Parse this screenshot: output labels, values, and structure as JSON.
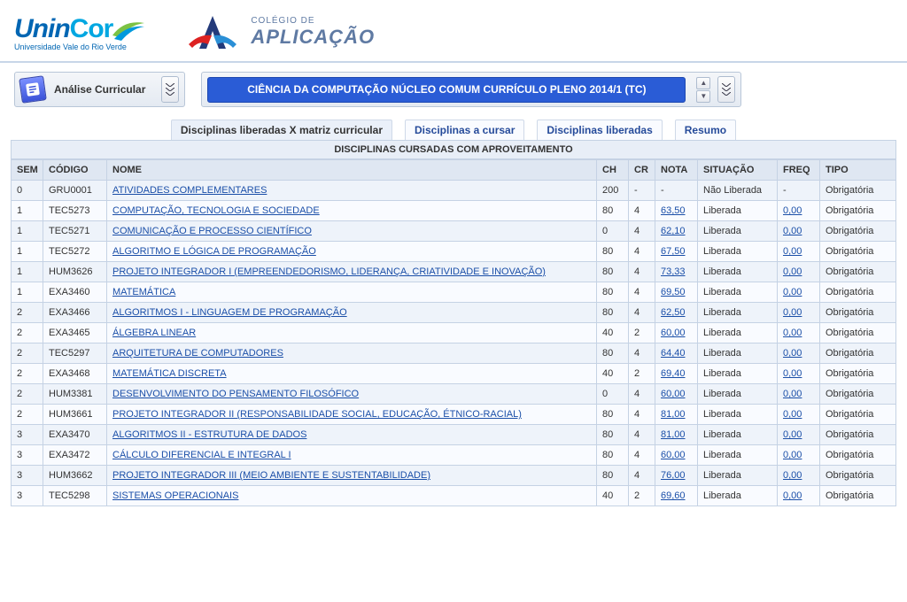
{
  "colors": {
    "header_border": "#c8d6e8",
    "toolbar_bg_top": "#f4f6f9",
    "toolbar_bg_bot": "#e4eaf2",
    "toolbar_border": "#b8c6d8",
    "course_bg": "#2a5cd6",
    "th_bg": "#dfe7f2",
    "row_odd": "#eef3fa",
    "row_even": "#f9fbff",
    "cell_border": "#c5d2e4",
    "link": "#1b4fa8"
  },
  "logos": {
    "unincor": {
      "brand_blue": "UninCor",
      "sub": "Universidade Vale do Rio Verde"
    },
    "aplicacao": {
      "small": "COLÉGIO DE",
      "big": "APLICAÇÃO"
    }
  },
  "toolbar": {
    "analysis_label": "Análise Curricular",
    "course_title": "CIÊNCIA DA COMPUTAÇÃO NÚCLEO COMUM CURRÍCULO PLENO 2014/1 (TC)"
  },
  "tabs": [
    {
      "label": "Disciplinas liberadas X matriz curricular",
      "active": true
    },
    {
      "label": "Disciplinas a cursar",
      "active": false
    },
    {
      "label": "Disciplinas liberadas",
      "active": false
    },
    {
      "label": "Resumo",
      "active": false
    }
  ],
  "section_title": "DISCIPLINAS CURSADAS COM APROVEITAMENTO",
  "columns": [
    "SEM",
    "CÓDIGO",
    "NOME",
    "CH",
    "CR",
    "NOTA",
    "SITUAÇÃO",
    "FREQ",
    "TIPO"
  ],
  "rows": [
    {
      "sem": "0",
      "codigo": "GRU0001",
      "nome": "ATIVIDADES COMPLEMENTARES",
      "ch": "200",
      "cr": "-",
      "nota": "-",
      "nota_link": false,
      "situacao": "Não Liberada",
      "freq": "-",
      "freq_link": false,
      "tipo": "Obrigatória"
    },
    {
      "sem": "1",
      "codigo": "TEC5273",
      "nome": "COMPUTAÇÃO, TECNOLOGIA E SOCIEDADE",
      "ch": "80",
      "cr": "4",
      "nota": "63,50",
      "nota_link": true,
      "situacao": "Liberada",
      "freq": "0,00",
      "freq_link": true,
      "tipo": "Obrigatória"
    },
    {
      "sem": "1",
      "codigo": "TEC5271",
      "nome": "COMUNICAÇÃO E PROCESSO CIENTÍFICO",
      "ch": "0",
      "cr": "4",
      "nota": "62,10",
      "nota_link": true,
      "situacao": "Liberada",
      "freq": "0,00",
      "freq_link": true,
      "tipo": "Obrigatória"
    },
    {
      "sem": "1",
      "codigo": "TEC5272",
      "nome": "ALGORITMO E LÓGICA DE PROGRAMAÇÃO",
      "ch": "80",
      "cr": "4",
      "nota": "67,50",
      "nota_link": true,
      "situacao": "Liberada",
      "freq": "0,00",
      "freq_link": true,
      "tipo": "Obrigatória"
    },
    {
      "sem": "1",
      "codigo": "HUM3626",
      "nome": "PROJETO INTEGRADOR I (EMPREENDEDORISMO, LIDERANÇA, CRIATIVIDADE E INOVAÇÃO)",
      "ch": "80",
      "cr": "4",
      "nota": "73,33",
      "nota_link": true,
      "situacao": "Liberada",
      "freq": "0,00",
      "freq_link": true,
      "tipo": "Obrigatória"
    },
    {
      "sem": "1",
      "codigo": "EXA3460",
      "nome": "MATEMÁTICA",
      "ch": "80",
      "cr": "4",
      "nota": "69,50",
      "nota_link": true,
      "situacao": "Liberada",
      "freq": "0,00",
      "freq_link": true,
      "tipo": "Obrigatória"
    },
    {
      "sem": "2",
      "codigo": "EXA3466",
      "nome": "ALGORITMOS I - LINGUAGEM DE PROGRAMAÇÃO",
      "ch": "80",
      "cr": "4",
      "nota": "62,50",
      "nota_link": true,
      "situacao": "Liberada",
      "freq": "0,00",
      "freq_link": true,
      "tipo": "Obrigatória"
    },
    {
      "sem": "2",
      "codigo": "EXA3465",
      "nome": "ÁLGEBRA LINEAR",
      "ch": "40",
      "cr": "2",
      "nota": "60,00",
      "nota_link": true,
      "situacao": "Liberada",
      "freq": "0,00",
      "freq_link": true,
      "tipo": "Obrigatória"
    },
    {
      "sem": "2",
      "codigo": "TEC5297",
      "nome": "ARQUITETURA DE COMPUTADORES",
      "ch": "80",
      "cr": "4",
      "nota": "64,40",
      "nota_link": true,
      "situacao": "Liberada",
      "freq": "0,00",
      "freq_link": true,
      "tipo": "Obrigatória"
    },
    {
      "sem": "2",
      "codigo": "EXA3468",
      "nome": "MATEMÁTICA DISCRETA",
      "ch": "40",
      "cr": "2",
      "nota": "69,40",
      "nota_link": true,
      "situacao": "Liberada",
      "freq": "0,00",
      "freq_link": true,
      "tipo": "Obrigatória"
    },
    {
      "sem": "2",
      "codigo": "HUM3381",
      "nome": "DESENVOLVIMENTO DO PENSAMENTO FILOSÓFICO",
      "ch": "0",
      "cr": "4",
      "nota": "60,00",
      "nota_link": true,
      "situacao": "Liberada",
      "freq": "0,00",
      "freq_link": true,
      "tipo": "Obrigatória"
    },
    {
      "sem": "2",
      "codigo": "HUM3661",
      "nome": "PROJETO INTEGRADOR II (RESPONSABILIDADE SOCIAL, EDUCAÇÃO, ÉTNICO-RACIAL)",
      "ch": "80",
      "cr": "4",
      "nota": "81,00",
      "nota_link": true,
      "situacao": "Liberada",
      "freq": "0,00",
      "freq_link": true,
      "tipo": "Obrigatória"
    },
    {
      "sem": "3",
      "codigo": "EXA3470",
      "nome": "ALGORITMOS II - ESTRUTURA DE DADOS",
      "ch": "80",
      "cr": "4",
      "nota": "81,00",
      "nota_link": true,
      "situacao": "Liberada",
      "freq": "0,00",
      "freq_link": true,
      "tipo": "Obrigatória"
    },
    {
      "sem": "3",
      "codigo": "EXA3472",
      "nome": "CÁLCULO DIFERENCIAL E INTEGRAL I",
      "ch": "80",
      "cr": "4",
      "nota": "60,00",
      "nota_link": true,
      "situacao": "Liberada",
      "freq": "0,00",
      "freq_link": true,
      "tipo": "Obrigatória"
    },
    {
      "sem": "3",
      "codigo": "HUM3662",
      "nome": "PROJETO INTEGRADOR III (MEIO AMBIENTE E SUSTENTABILIDADE)",
      "ch": "80",
      "cr": "4",
      "nota": "76,00",
      "nota_link": true,
      "situacao": "Liberada",
      "freq": "0,00",
      "freq_link": true,
      "tipo": "Obrigatória"
    },
    {
      "sem": "3",
      "codigo": "TEC5298",
      "nome": "SISTEMAS OPERACIONAIS",
      "ch": "40",
      "cr": "2",
      "nota": "69,60",
      "nota_link": true,
      "situacao": "Liberada",
      "freq": "0,00",
      "freq_link": true,
      "tipo": "Obrigatória"
    }
  ]
}
